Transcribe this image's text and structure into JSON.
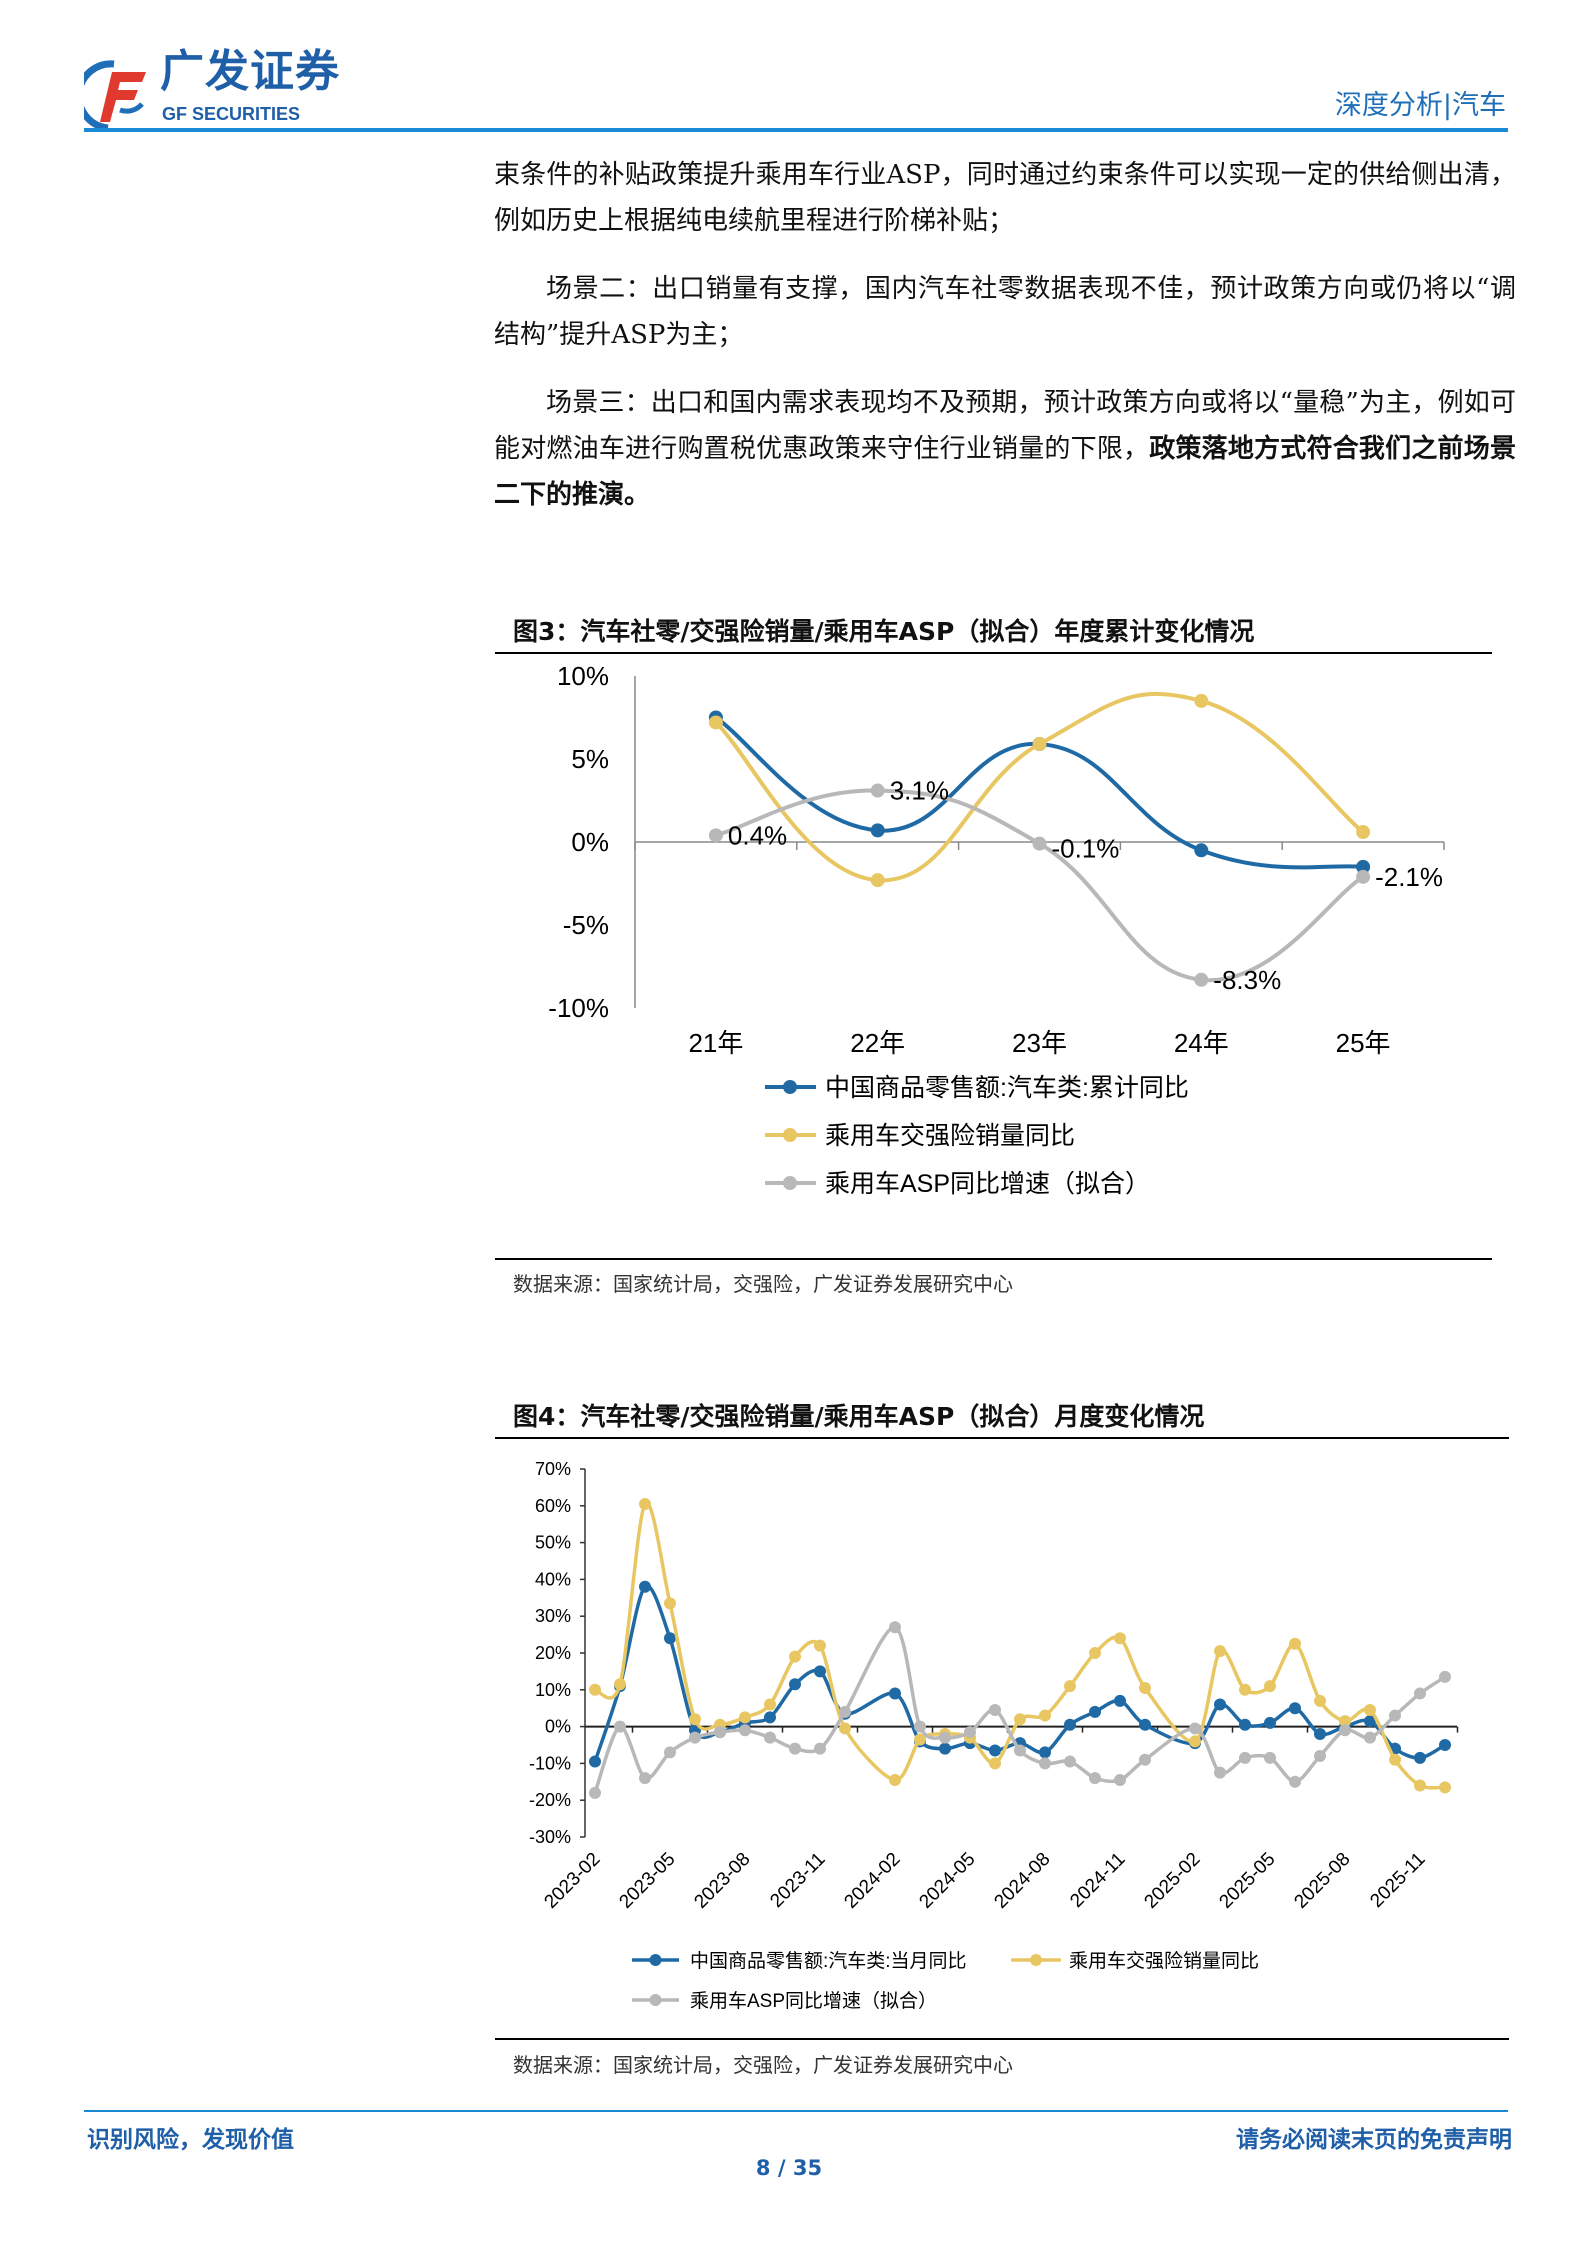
{
  "header": {
    "logo_cn": "广发证券",
    "logo_en": "GF SECURITIES",
    "section": "深度分析|汽车"
  },
  "body": {
    "p1": "束条件的补贴政策提升乘用车行业ASP，同时通过约束条件可以实现一定的供给侧出清，例如历史上根据纯电续航里程进行阶梯补贴；",
    "p2": "场景二：出口销量有支撑，国内汽车社零数据表现不佳，预计政策方向或仍将以“调结构”提升ASP为主；",
    "p3_normal": "场景三：出口和国内需求表现均不及预期，预计政策方向或将以“量稳”为主，例如可能对燃油车进行购置税优惠政策来守住行业销量的下限，",
    "p3_bold": "政策落地方式符合我们之前场景二下的推演。"
  },
  "figure3": {
    "title": "图3：汽车社零/交强险销量/乘用车ASP（拟合）年度累计变化情况",
    "source": "数据来源：国家统计局，交强险，广发证券发展研究中心"
  },
  "figure4": {
    "title": "图4：汽车社零/交强险销量/乘用车ASP（拟合）月度变化情况",
    "source": "数据来源：国家统计局，交强险，广发证券发展研究中心"
  },
  "chart_data": [
    {
      "type": "line",
      "title": "图3：汽车社零/交强险销量/乘用车ASP（拟合）年度累计变化情况",
      "categories": [
        "21年",
        "22年",
        "23年",
        "24年",
        "25年"
      ],
      "ylim": [
        -10,
        10
      ],
      "yticks": [
        "10%",
        "5%",
        "0%",
        "-5%",
        "-10%"
      ],
      "grid": false,
      "legend_position": "bottom",
      "series": [
        {
          "name": "中国商品零售额:汽车类:累计同比",
          "color": "#1f6aa5",
          "values": [
            7.5,
            0.7,
            5.9,
            -0.5,
            -1.5
          ]
        },
        {
          "name": "乘用车交强险销量同比",
          "color": "#e8c763",
          "values": [
            7.2,
            -2.3,
            5.9,
            8.5,
            0.6
          ]
        },
        {
          "name": "乘用车ASP同比增速（拟合）",
          "color": "#b8b8b8",
          "values": [
            0.4,
            3.1,
            -0.1,
            -8.3,
            -2.1
          ],
          "labels": [
            "0.4%",
            "3.1%",
            "-0.1%",
            "-8.3%",
            "-2.1%"
          ]
        }
      ]
    },
    {
      "type": "line",
      "title": "图4：汽车社零/交强险销量/乘用车ASP（拟合）月度变化情况",
      "x": [
        "2023-02",
        "2023-03",
        "2023-04",
        "2023-05",
        "2023-06",
        "2023-07",
        "2023-08",
        "2023-09",
        "2023-10",
        "2023-11",
        "2023-12",
        "2024-01",
        "2024-02",
        "2024-03",
        "2024-04",
        "2024-05",
        "2024-06",
        "2024-07",
        "2024-08",
        "2024-09",
        "2024-10",
        "2024-11",
        "2024-12",
        "2025-01",
        "2025-02",
        "2025-03",
        "2025-04",
        "2025-05",
        "2025-06",
        "2025-07",
        "2025-08",
        "2025-09",
        "2025-10",
        "2025-11",
        "2025-12"
      ],
      "xtick_labels": [
        "2023-02",
        "2023-05",
        "2023-08",
        "2023-11",
        "2024-02",
        "2024-05",
        "2024-08",
        "2024-11",
        "2025-02",
        "2025-05",
        "2025-08",
        "2025-11"
      ],
      "ylim": [
        -30,
        70
      ],
      "yticks": [
        "70%",
        "60%",
        "50%",
        "40%",
        "30%",
        "20%",
        "10%",
        "0%",
        "-10%",
        "-20%",
        "-30%"
      ],
      "grid": false,
      "legend_position": "bottom",
      "series": [
        {
          "name": "中国商品零售额:汽车类:当月同比",
          "color": "#1f6aa5",
          "values": [
            -9.5,
            11,
            38,
            24,
            -1,
            -1.5,
            1,
            2.5,
            11.5,
            15,
            3.5,
            null,
            9,
            -4,
            -6,
            -4.5,
            -6.5,
            -4.5,
            -7,
            0.5,
            4,
            7,
            0.5,
            null,
            -4.5,
            6,
            0.5,
            1,
            5,
            -2,
            0,
            1.5,
            -6,
            -8.5,
            -5
          ]
        },
        {
          "name": "乘用车交强险销量同比",
          "color": "#e8c763",
          "values": [
            10,
            11.5,
            60.5,
            33.5,
            2,
            0.5,
            2.5,
            6,
            19,
            22,
            -0.5,
            null,
            -14.5,
            -3.5,
            -2,
            -3,
            -10,
            2,
            3,
            11,
            20,
            24,
            10.5,
            null,
            -4,
            20.5,
            10,
            11,
            22.5,
            7,
            1.5,
            4.5,
            -9,
            -16,
            -16.5
          ]
        },
        {
          "name": "乘用车ASP同比增速（拟合）",
          "color": "#b8b8b8",
          "values": [
            -18,
            0,
            -14,
            -7,
            -3,
            -1.5,
            -1,
            -3,
            -6,
            -6,
            4,
            null,
            27,
            0,
            -3,
            -1.5,
            4.5,
            -6.5,
            -10,
            -9.5,
            -14,
            -14.5,
            -9,
            null,
            -0.5,
            -12.5,
            -8.5,
            -8.5,
            -15,
            -8,
            -1,
            -3,
            3,
            9,
            13.5
          ]
        }
      ]
    }
  ],
  "footer": {
    "left": "识别风险，发现价值",
    "right": "请务必阅读末页的免责声明",
    "page": "8 / 35"
  }
}
